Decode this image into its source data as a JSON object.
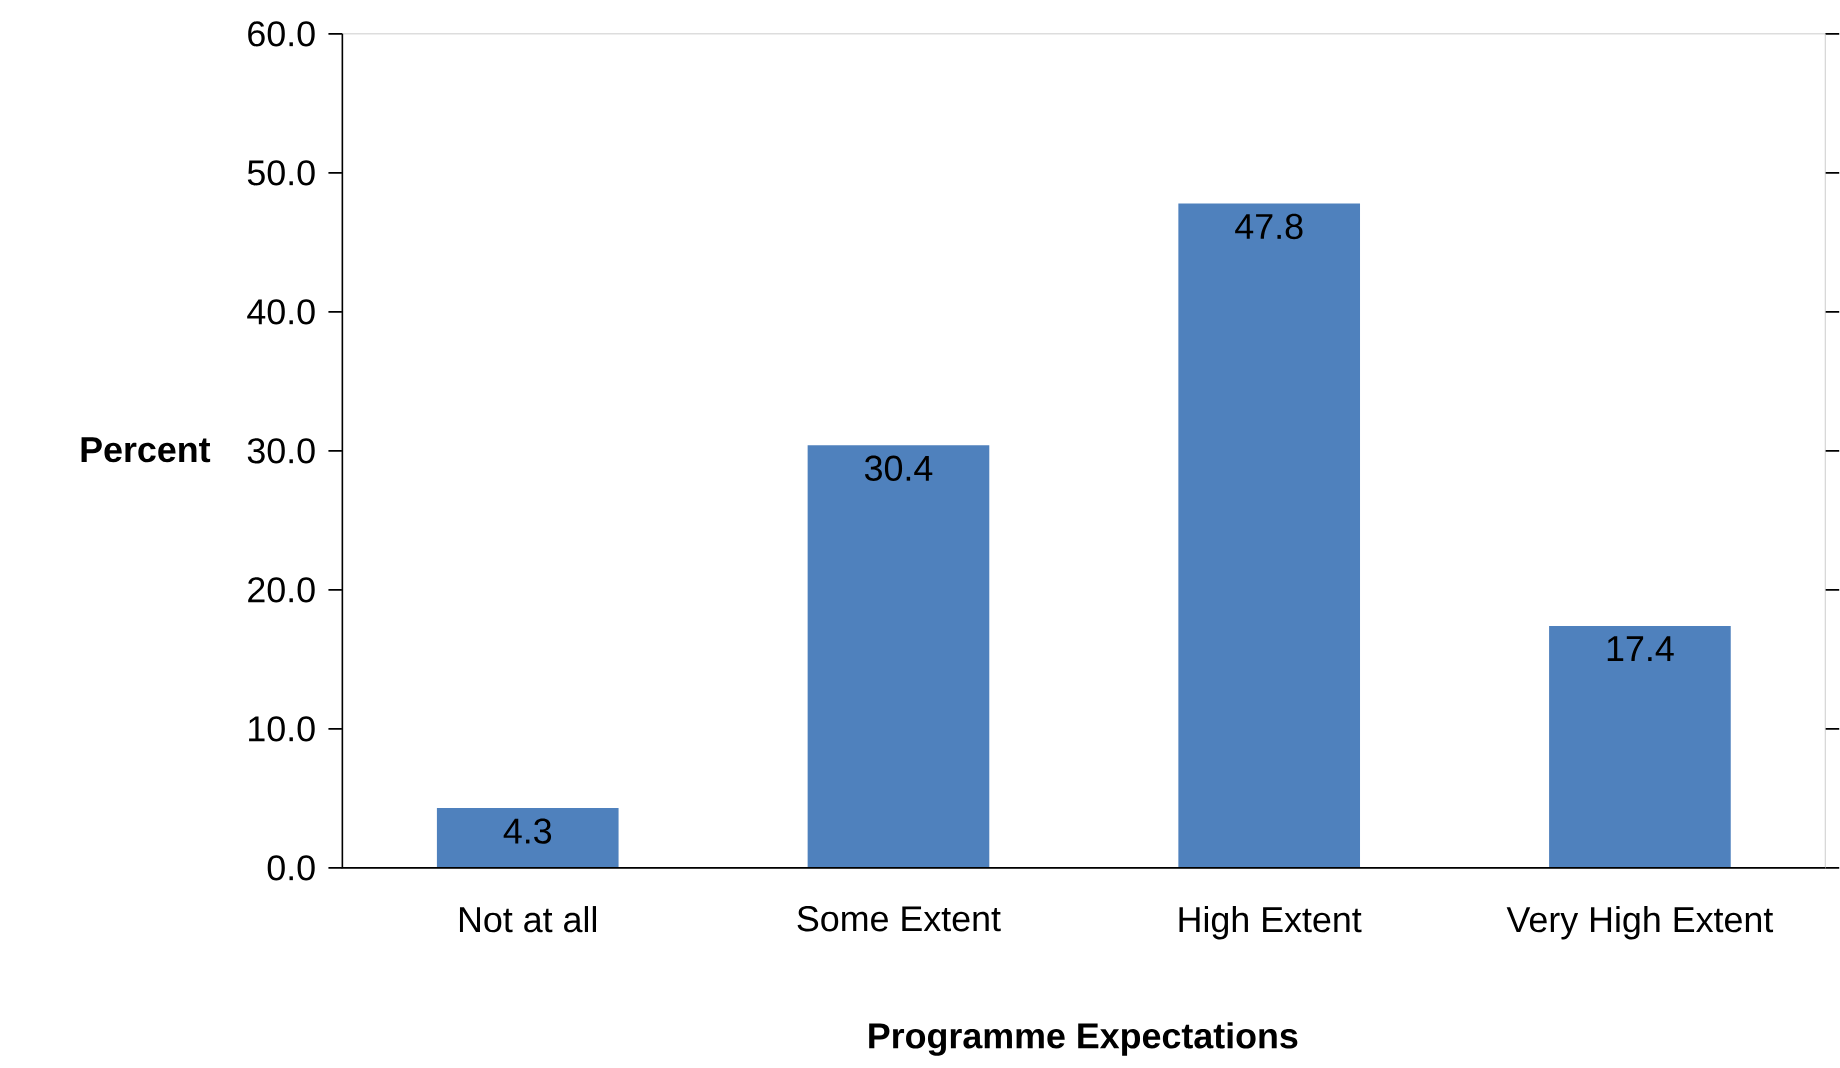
{
  "chart_data": {
    "type": "bar",
    "xlabel": "Programme Expectations",
    "ylabel": "Percent",
    "categories": [
      "Not at all",
      "Some Extent",
      "High Extent",
      "Very High Extent"
    ],
    "values": [
      4.3,
      30.4,
      47.8,
      17.4
    ],
    "color": "#4f81bd",
    "data_labels": true,
    "ylim": [
      0,
      60
    ],
    "yticks": [
      {
        "value": 0,
        "label": "0.0"
      },
      {
        "value": 10,
        "label": "10.0"
      },
      {
        "value": 20,
        "label": "20.0"
      },
      {
        "value": 30,
        "label": "30.0"
      },
      {
        "value": 40,
        "label": "40.0"
      },
      {
        "value": 50,
        "label": "50.0"
      },
      {
        "value": 60,
        "label": "60.0"
      }
    ]
  }
}
